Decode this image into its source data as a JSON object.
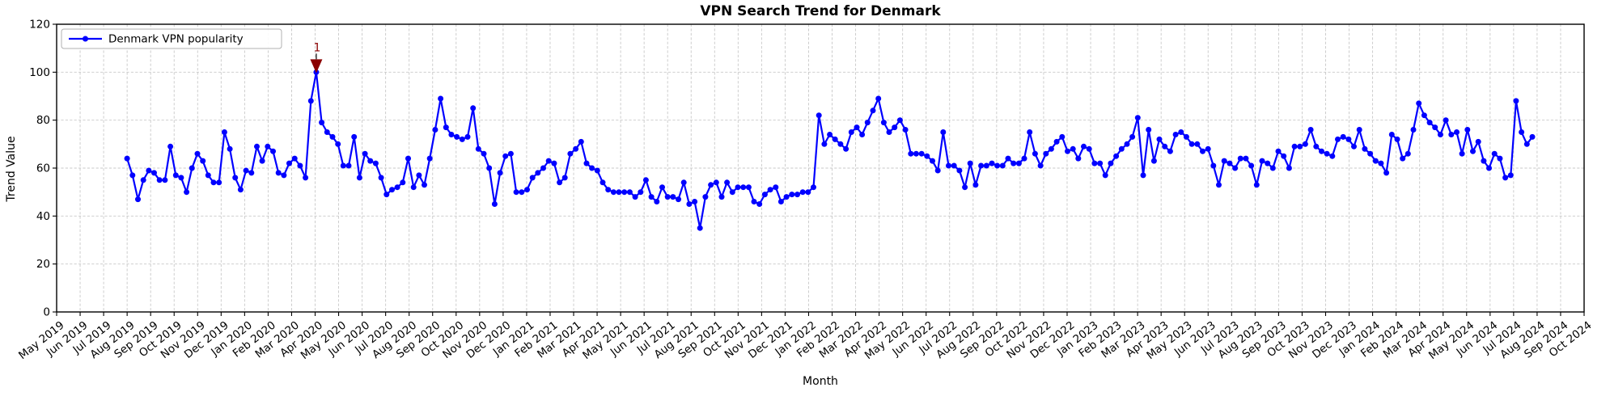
{
  "chart_data": {
    "type": "line",
    "title": "VPN Search Trend for Denmark",
    "xlabel": "Month",
    "ylabel": "Trend Value",
    "ylim": [
      0,
      120
    ],
    "yticks": [
      0,
      20,
      40,
      60,
      80,
      100,
      120
    ],
    "grid": "dashed",
    "grid_color": "#c8c8c8",
    "background": "#ffffff",
    "legend_position": "upper left",
    "x_tick_labels": [
      "May 2019",
      "Jun 2019",
      "Jul 2019",
      "Aug 2019",
      "Sep 2019",
      "Oct 2019",
      "Nov 2019",
      "Dec 2019",
      "Jan 2020",
      "Feb 2020",
      "Mar 2020",
      "Apr 2020",
      "May 2020",
      "Jun 2020",
      "Jul 2020",
      "Aug 2020",
      "Sep 2020",
      "Oct 2020",
      "Nov 2020",
      "Dec 2020",
      "Jan 2021",
      "Feb 2021",
      "Mar 2021",
      "Apr 2021",
      "May 2021",
      "Jun 2021",
      "Jul 2021",
      "Aug 2021",
      "Sep 2021",
      "Oct 2021",
      "Nov 2021",
      "Dec 2021",
      "Jan 2022",
      "Feb 2022",
      "Mar 2022",
      "Apr 2022",
      "May 2022",
      "Jun 2022",
      "Jul 2022",
      "Aug 2022",
      "Sep 2022",
      "Oct 2022",
      "Nov 2022",
      "Dec 2022",
      "Jan 2023",
      "Feb 2023",
      "Mar 2023",
      "Apr 2023",
      "May 2023",
      "Jun 2023",
      "Jul 2023",
      "Aug 2023",
      "Sep 2023",
      "Oct 2023",
      "Nov 2023",
      "Dec 2023",
      "Jan 2024",
      "Feb 2024",
      "Mar 2024",
      "Apr 2024",
      "May 2024",
      "Jun 2024",
      "Jul 2024",
      "Aug 2024",
      "Sep 2024",
      "Oct 2024"
    ],
    "series": [
      {
        "name": "Denmark VPN popularity",
        "color": "#0000ff",
        "marker": "circle",
        "x_interval": "weekly",
        "x_start_month_index": 3,
        "values": [
          64,
          57,
          47,
          55,
          59,
          58,
          55,
          55,
          69,
          57,
          56,
          50,
          60,
          66,
          63,
          57,
          54,
          54,
          75,
          68,
          56,
          51,
          59,
          58,
          69,
          63,
          69,
          67,
          58,
          57,
          62,
          64,
          61,
          56,
          88,
          100,
          79,
          75,
          73,
          70,
          61,
          61,
          73,
          56,
          66,
          63,
          62,
          56,
          49,
          51,
          52,
          54,
          64,
          52,
          57,
          53,
          64,
          76,
          89,
          77,
          74,
          73,
          72,
          73,
          85,
          68,
          66,
          60,
          45,
          58,
          65,
          66,
          50,
          50,
          51,
          56,
          58,
          60,
          63,
          62,
          54,
          56,
          66,
          68,
          71,
          62,
          60,
          59,
          54,
          51,
          50,
          50,
          50,
          50,
          48,
          50,
          55,
          48,
          46,
          52,
          48,
          48,
          47,
          54,
          45,
          46,
          35,
          48,
          53,
          54,
          48,
          54,
          50,
          52,
          52,
          52,
          46,
          45,
          49,
          51,
          52,
          46,
          48,
          49,
          49,
          50,
          50,
          52,
          82,
          70,
          74,
          72,
          70,
          68,
          75,
          77,
          74,
          79,
          84,
          89,
          79,
          75,
          77,
          80,
          76,
          66,
          66,
          66,
          65,
          63,
          59,
          75,
          61,
          61,
          59,
          52,
          62,
          53,
          61,
          61,
          62,
          61,
          61,
          64,
          62,
          62,
          64,
          75,
          66,
          61,
          66,
          68,
          71,
          73,
          67,
          68,
          64,
          69,
          68,
          62,
          62,
          57,
          62,
          65,
          68,
          70,
          73,
          81,
          57,
          76,
          63,
          72,
          69,
          67,
          74,
          75,
          73,
          70,
          70,
          67,
          68,
          61,
          53,
          63,
          62,
          60,
          64,
          64,
          61,
          53,
          63,
          62,
          60,
          67,
          65,
          60,
          69,
          69,
          70,
          76,
          69,
          67,
          66,
          65,
          72,
          73,
          72,
          69,
          76,
          68,
          66,
          63,
          62,
          58,
          74,
          72,
          64,
          66,
          76,
          87,
          82,
          79,
          77,
          74,
          80,
          74,
          75,
          66,
          76,
          67,
          71,
          63,
          60,
          66,
          64,
          56,
          57,
          88,
          75,
          70,
          73
        ]
      }
    ],
    "annotation": {
      "label": "1",
      "color": "#8b0000",
      "point_index": 35,
      "value": 100
    }
  }
}
